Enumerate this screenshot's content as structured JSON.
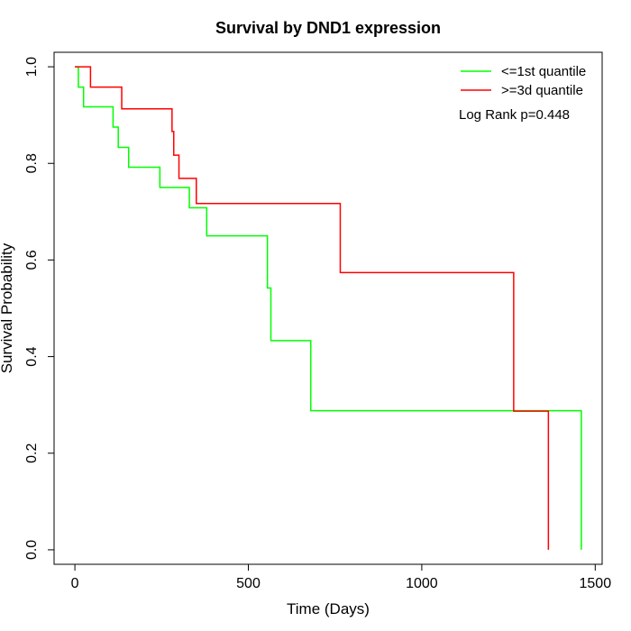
{
  "chart_data": {
    "type": "line",
    "title": "Survival by DND1 expression",
    "xlabel": "Time (Days)",
    "ylabel": "Survival Probability",
    "xlim": [
      -60,
      1520
    ],
    "ylim": [
      -0.03,
      1.03
    ],
    "xticks": [
      0,
      500,
      1000,
      1500
    ],
    "yticks": [
      0.0,
      0.2,
      0.4,
      0.6,
      0.8,
      1.0
    ],
    "xtick_labels": [
      "0",
      "500",
      "1000",
      "1500"
    ],
    "ytick_labels": [
      "0.0",
      "0.2",
      "0.4",
      "0.6",
      "0.8",
      "1.0"
    ],
    "grid": false,
    "legend_position": "top-right",
    "annotation": "Log Rank p=0.448",
    "series": [
      {
        "name": "<=1st quantile",
        "color": "#00ff00",
        "steps": [
          [
            0,
            1.0
          ],
          [
            10,
            0.958
          ],
          [
            25,
            0.917
          ],
          [
            110,
            0.875
          ],
          [
            125,
            0.833
          ],
          [
            155,
            0.792
          ],
          [
            245,
            0.75
          ],
          [
            330,
            0.708
          ],
          [
            380,
            0.65
          ],
          [
            555,
            0.542
          ],
          [
            565,
            0.433
          ],
          [
            680,
            0.288
          ],
          [
            1460,
            0.0
          ]
        ]
      },
      {
        "name": ">=3d quantile",
        "color": "#ff0000",
        "steps": [
          [
            0,
            1.0
          ],
          [
            45,
            0.958
          ],
          [
            135,
            0.913
          ],
          [
            280,
            0.866
          ],
          [
            285,
            0.817
          ],
          [
            300,
            0.769
          ],
          [
            350,
            0.717
          ],
          [
            765,
            0.574
          ],
          [
            1265,
            0.287
          ],
          [
            1365,
            0.0
          ]
        ]
      }
    ]
  }
}
